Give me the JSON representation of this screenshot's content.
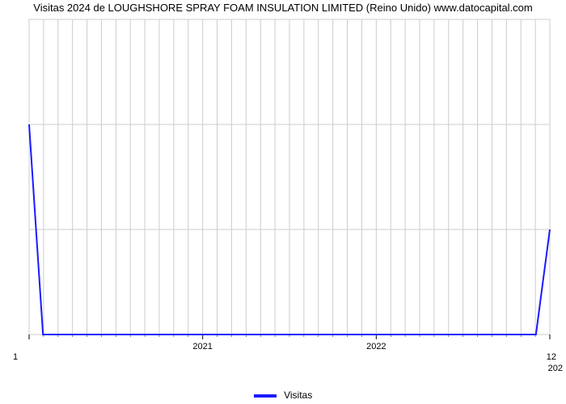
{
  "title": "Visitas 2024 de LOUGHSHORE SPRAY FOAM INSULATION LIMITED (Reino Unido) www.datocapital.com",
  "chart": {
    "type": "line",
    "background_color": "#ffffff",
    "grid_major_color": "#cccccc",
    "grid_minor_color": "#e6e6e6",
    "series_color": "#1a1aff",
    "series_width": 2,
    "xlim": [
      2020,
      2023
    ],
    "ylim": [
      0,
      3
    ],
    "y_ticks": [
      0,
      1,
      2,
      3
    ],
    "x_major_ticks": [
      2021,
      2022
    ],
    "x_minor_step": 0.0833333,
    "x_axis_fontsize": 11,
    "y_axis_fontsize": 11,
    "title_fontsize": 13,
    "corner_left_label": "1",
    "corner_right_label": "12",
    "corner_right2_label": "202",
    "data_points": [
      {
        "x": 2020.0,
        "y": 2.0
      },
      {
        "x": 2020.08,
        "y": 0.0
      },
      {
        "x": 2022.84,
        "y": 0.0
      },
      {
        "x": 2022.92,
        "y": 0.0
      },
      {
        "x": 2023.0,
        "y": 1.0
      }
    ]
  },
  "legend": {
    "label": "Visitas",
    "swatch_color": "#1a1aff"
  }
}
